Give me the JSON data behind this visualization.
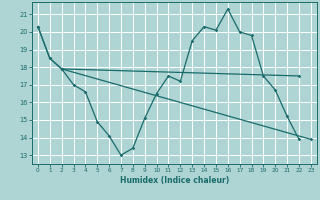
{
  "title": "",
  "xlabel": "Humidex (Indice chaleur)",
  "background_color": "#aed4d4",
  "grid_color": "#ffffff",
  "line_color": "#1a6b6b",
  "xlim": [
    -0.5,
    23.5
  ],
  "ylim": [
    12.5,
    21.7
  ],
  "xticks": [
    0,
    1,
    2,
    3,
    4,
    5,
    6,
    7,
    8,
    9,
    10,
    11,
    12,
    13,
    14,
    15,
    16,
    17,
    18,
    19,
    20,
    21,
    22,
    23
  ],
  "yticks": [
    13,
    14,
    15,
    16,
    17,
    18,
    19,
    20,
    21
  ],
  "s1x": [
    0,
    1,
    2,
    3,
    4,
    5,
    6,
    7,
    8,
    9,
    10,
    11,
    12,
    13,
    14,
    15,
    16,
    17,
    18,
    19,
    20,
    21,
    22
  ],
  "s1y": [
    20.3,
    18.5,
    17.9,
    17.0,
    16.6,
    14.9,
    14.1,
    13.0,
    13.4,
    15.1,
    16.5,
    17.5,
    17.2,
    19.5,
    20.3,
    20.1,
    21.3,
    20.0,
    19.8,
    17.5,
    16.7,
    15.2,
    13.9
  ],
  "s2x": [
    0,
    1,
    2,
    22
  ],
  "s2y": [
    20.3,
    18.5,
    17.9,
    17.5
  ],
  "s3x": [
    2,
    23
  ],
  "s3y": [
    17.9,
    13.9
  ]
}
